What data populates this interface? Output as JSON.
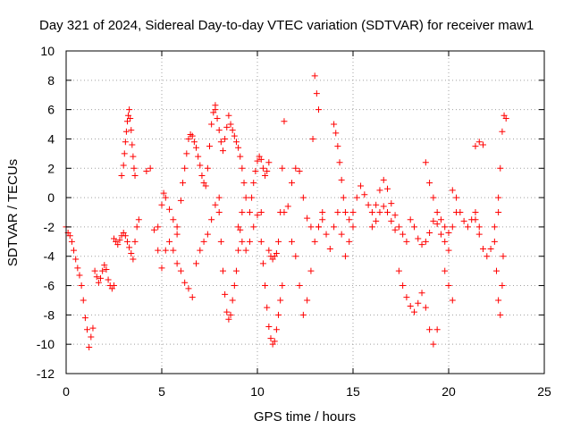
{
  "chart_data": {
    "type": "scatter",
    "title": "Day 321 of 2024, Sidereal Day-to-day VTEC variation (SDTVAR) for receiver maw1",
    "xlabel": "GPS time / hours",
    "ylabel": "SDTVAR / TECUs",
    "xlim": [
      0,
      25
    ],
    "ylim": [
      -12,
      10
    ],
    "xticks": [
      0,
      5,
      10,
      15,
      20,
      25
    ],
    "yticks": [
      -12,
      -10,
      -8,
      -6,
      -4,
      -2,
      0,
      2,
      4,
      6,
      8,
      10
    ],
    "grid": true,
    "marker": "plus",
    "color": "#ff0000",
    "series": [
      {
        "name": "track-1",
        "x": [
          0.0,
          0.1,
          0.2,
          0.3,
          0.4,
          0.5,
          0.6,
          0.7,
          0.8,
          0.9,
          1.0,
          1.1,
          1.2,
          1.3,
          1.4
        ],
        "y": [
          -2.0,
          -2.4,
          -2.6,
          -3.0,
          -3.6,
          -4.2,
          -4.8,
          -5.3,
          -6.0,
          -7.0,
          -8.2,
          -9.0,
          -10.2,
          -9.5,
          -8.9
        ]
      },
      {
        "name": "track-2",
        "x": [
          1.5,
          1.6,
          1.7,
          1.8,
          1.9,
          2.0,
          2.1,
          2.2,
          2.3,
          2.4,
          2.5
        ],
        "y": [
          -5.0,
          -5.4,
          -5.8,
          -5.5,
          -5.0,
          -4.6,
          -4.9,
          -5.6,
          -6.0,
          -6.2,
          -6.0
        ]
      },
      {
        "name": "track-3",
        "x": [
          2.5,
          2.6,
          2.7,
          2.8,
          2.9,
          3.0,
          3.1,
          3.2,
          3.3,
          3.4,
          3.5,
          3.6,
          3.7,
          3.8
        ],
        "y": [
          -2.8,
          -3.0,
          -3.2,
          -2.9,
          -2.6,
          -2.4,
          -2.6,
          -3.0,
          -3.4,
          -3.8,
          -4.2,
          -3.0,
          -2.0,
          -1.5
        ]
      },
      {
        "name": "track-4",
        "x": [
          2.9,
          3.0,
          3.05,
          3.1,
          3.15,
          3.2,
          3.25,
          3.3,
          3.35,
          3.4,
          3.45,
          3.5,
          3.55,
          3.6
        ],
        "y": [
          1.5,
          2.2,
          3.0,
          3.8,
          4.5,
          5.2,
          5.6,
          6.0,
          5.4,
          4.6,
          3.6,
          2.8,
          2.0,
          1.5
        ]
      },
      {
        "name": "track-5",
        "x": [
          4.2,
          4.4,
          4.6,
          4.8,
          5.0,
          5.2,
          5.4,
          5.6,
          5.8,
          6.0,
          6.2,
          6.4,
          6.6
        ],
        "y": [
          1.8,
          2.0,
          -2.2,
          -3.6,
          -4.8,
          -3.6,
          -3.0,
          -3.6,
          -4.5,
          -5.0,
          -5.8,
          -6.2,
          -6.8
        ]
      },
      {
        "name": "track-6",
        "x": [
          4.8,
          5.0,
          5.1,
          5.2,
          5.4,
          5.6,
          5.8
        ],
        "y": [
          -2.0,
          -0.5,
          0.3,
          0.0,
          -0.8,
          -1.5,
          -2.0
        ]
      },
      {
        "name": "track-7",
        "x": [
          5.8,
          6.0,
          6.1,
          6.2,
          6.3,
          6.4,
          6.5,
          6.6,
          6.7,
          6.8,
          6.9,
          7.0,
          7.1,
          7.2,
          7.3,
          7.4,
          7.5,
          7.6,
          7.7,
          7.8
        ],
        "y": [
          -2.5,
          -0.2,
          1.0,
          2.0,
          3.0,
          4.0,
          4.3,
          4.2,
          3.8,
          3.4,
          2.8,
          2.2,
          1.5,
          1.0,
          0.8,
          2.0,
          3.5,
          5.0,
          5.8,
          6.3
        ]
      },
      {
        "name": "track-8",
        "x": [
          6.8,
          7.0,
          7.2,
          7.4,
          7.6,
          7.8,
          8.0
        ],
        "y": [
          -4.5,
          -3.6,
          -3.0,
          -2.5,
          -1.5,
          -0.5,
          0.0
        ]
      },
      {
        "name": "track-9",
        "x": [
          7.8,
          7.9,
          8.0,
          8.1,
          8.2,
          8.3,
          8.4,
          8.5,
          8.6,
          8.7,
          8.8,
          8.9,
          9.0,
          9.1,
          9.2,
          9.3,
          9.4
        ],
        "y": [
          6.0,
          5.4,
          4.6,
          3.8,
          3.2,
          4.0,
          4.8,
          5.6,
          5.0,
          4.6,
          4.2,
          3.8,
          3.4,
          2.8,
          2.0,
          1.0,
          0.0
        ]
      },
      {
        "name": "track-10",
        "x": [
          8.0,
          8.1,
          8.2,
          8.3,
          8.4,
          8.5,
          8.6,
          8.7,
          8.8,
          8.9,
          9.0,
          9.1,
          9.2
        ],
        "y": [
          -1.0,
          -3.0,
          -5.0,
          -6.6,
          -7.8,
          -8.3,
          -8.0,
          -7.0,
          -6.0,
          -5.0,
          -3.6,
          -2.2,
          -1.0
        ]
      },
      {
        "name": "track-11",
        "x": [
          9.0,
          9.2,
          9.4,
          9.6,
          9.8,
          10.0,
          10.2
        ],
        "y": [
          -2.0,
          -3.0,
          -3.6,
          -3.0,
          -2.0,
          -1.2,
          -1.0
        ]
      },
      {
        "name": "track-12",
        "x": [
          9.6,
          9.7,
          9.8,
          9.9,
          10.0,
          10.1,
          10.2,
          10.3,
          10.4,
          10.5,
          10.6
        ],
        "y": [
          -1.0,
          0.0,
          1.0,
          1.8,
          2.5,
          2.8,
          2.6,
          2.0,
          1.5,
          1.8,
          2.4
        ]
      },
      {
        "name": "track-13",
        "x": [
          10.2,
          10.3,
          10.4,
          10.5,
          10.6,
          10.7,
          10.8,
          10.9,
          11.0,
          11.1,
          11.2,
          11.3
        ],
        "y": [
          -3.0,
          -4.5,
          -6.0,
          -7.5,
          -8.8,
          -9.6,
          -10.0,
          -9.8,
          -9.0,
          -8.0,
          -7.0,
          -6.0
        ]
      },
      {
        "name": "track-14",
        "x": [
          10.6,
          10.7,
          10.8,
          10.9,
          11.0,
          11.1,
          11.2,
          11.3,
          11.4
        ],
        "y": [
          -3.6,
          -4.0,
          -4.2,
          -4.0,
          -3.8,
          -3.0,
          -1.0,
          2.0,
          5.2
        ]
      },
      {
        "name": "track-15",
        "x": [
          11.4,
          11.6,
          11.8,
          12.0,
          12.2,
          12.4,
          12.6,
          12.8
        ],
        "y": [
          -1.0,
          -0.6,
          1.0,
          2.0,
          1.8,
          0.0,
          -1.4,
          -2.0
        ]
      },
      {
        "name": "track-16",
        "x": [
          11.8,
          12.0,
          12.2,
          12.4,
          12.6,
          12.8,
          13.0,
          13.2,
          13.4
        ],
        "y": [
          -3.0,
          -4.0,
          -6.0,
          -8.0,
          -7.0,
          -5.0,
          -3.0,
          -2.0,
          -1.0
        ]
      },
      {
        "name": "track-17",
        "x": [
          12.9,
          13.0,
          13.1,
          13.2
        ],
        "y": [
          4.0,
          8.3,
          7.1,
          6.0
        ]
      },
      {
        "name": "track-18",
        "x": [
          13.2,
          13.4,
          13.6,
          13.8,
          14.0,
          14.2,
          14.4,
          14.6,
          14.8,
          15.0
        ],
        "y": [
          -2.0,
          -1.5,
          -2.5,
          -3.5,
          -2.0,
          -1.0,
          -2.5,
          -4.0,
          -3.0,
          -2.0
        ]
      },
      {
        "name": "track-19",
        "x": [
          14.0,
          14.1,
          14.2,
          14.3,
          14.4,
          14.5,
          14.6
        ],
        "y": [
          5.0,
          4.4,
          3.5,
          2.4,
          1.2,
          0.0,
          -1.0
        ]
      },
      {
        "name": "track-20",
        "x": [
          14.8,
          15.0,
          15.2,
          15.4,
          15.6,
          15.8,
          16.0,
          16.2,
          16.4,
          16.6,
          16.8,
          17.0,
          17.2,
          17.4,
          17.6,
          17.8
        ],
        "y": [
          -1.5,
          -1.0,
          0.0,
          0.8,
          0.2,
          -0.5,
          -1.0,
          -0.5,
          0.5,
          1.2,
          0.6,
          -0.4,
          -1.2,
          -2.0,
          -2.5,
          -3.0
        ]
      },
      {
        "name": "track-21",
        "x": [
          16.0,
          16.2,
          16.4,
          16.6,
          16.8,
          17.0,
          17.2
        ],
        "y": [
          -2.0,
          -1.6,
          -1.0,
          -0.6,
          -1.0,
          -1.6,
          -2.2
        ]
      },
      {
        "name": "track-22",
        "x": [
          17.4,
          17.6,
          17.8,
          18.0,
          18.2,
          18.4,
          18.6,
          18.8,
          19.0,
          19.2,
          19.4
        ],
        "y": [
          -5.0,
          -6.0,
          -6.8,
          -7.4,
          -7.8,
          -7.2,
          -6.5,
          -7.5,
          -9.0,
          -10.0,
          -9.0
        ]
      },
      {
        "name": "track-23",
        "x": [
          18.0,
          18.2,
          18.4,
          18.6,
          18.8,
          19.0,
          19.2,
          19.4,
          19.6,
          19.8,
          20.0
        ],
        "y": [
          -1.5,
          -2.0,
          -2.8,
          -3.2,
          -3.0,
          -2.4,
          -1.6,
          -1.8,
          -2.5,
          -3.0,
          -3.6
        ]
      },
      {
        "name": "track-24",
        "x": [
          18.8,
          19.0,
          19.2,
          19.4,
          19.6,
          19.8,
          20.0,
          20.2,
          20.4
        ],
        "y": [
          2.4,
          1.0,
          0.0,
          -1.0,
          -1.5,
          -2.0,
          -2.4,
          -2.0,
          -1.0
        ]
      },
      {
        "name": "track-25",
        "x": [
          19.8,
          20.0,
          20.2
        ],
        "y": [
          -5.0,
          -6.0,
          -7.0
        ]
      },
      {
        "name": "track-26",
        "x": [
          20.2,
          20.4,
          20.6,
          20.8,
          21.0,
          21.2,
          21.4,
          21.6
        ],
        "y": [
          0.5,
          0.0,
          -1.0,
          -1.6,
          -2.0,
          -1.5,
          -1.0,
          -2.0
        ]
      },
      {
        "name": "track-27",
        "x": [
          21.4,
          21.6,
          21.8
        ],
        "y": [
          3.5,
          3.8,
          3.6
        ]
      },
      {
        "name": "track-28",
        "x": [
          21.4,
          21.6,
          21.8,
          22.0,
          22.2,
          22.4,
          22.6
        ],
        "y": [
          -1.5,
          -2.5,
          -3.5,
          -4.0,
          -3.5,
          -2.0,
          -1.0
        ]
      },
      {
        "name": "track-29",
        "x": [
          22.4,
          22.5,
          22.6,
          22.7,
          22.8,
          22.85
        ],
        "y": [
          -3.0,
          -5.0,
          -7.0,
          -8.0,
          -6.0,
          -4.0
        ]
      },
      {
        "name": "track-30",
        "x": [
          22.6,
          22.7,
          22.8,
          22.9,
          23.0
        ],
        "y": [
          0.0,
          2.0,
          4.5,
          5.6,
          5.4
        ]
      }
    ]
  }
}
